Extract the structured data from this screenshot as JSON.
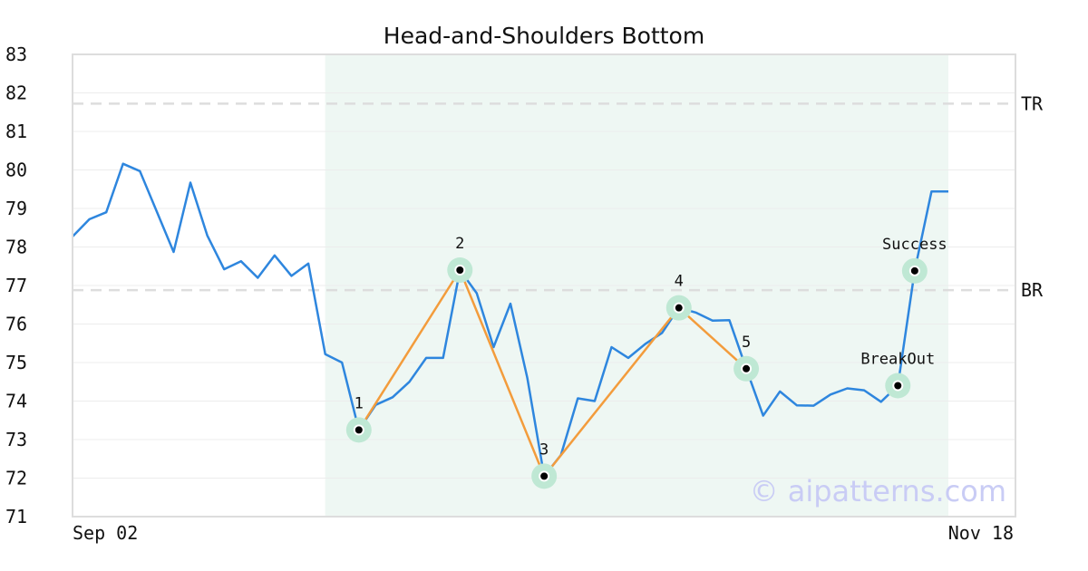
{
  "chart_data": {
    "type": "line",
    "title": "Head-and-Shoulders Bottom",
    "ylim": [
      71,
      83
    ],
    "yticks": [
      71,
      72,
      73,
      74,
      75,
      76,
      77,
      78,
      79,
      80,
      81,
      82,
      83
    ],
    "x_range": [
      0,
      55
    ],
    "x_tick_labels": [
      {
        "x": 0,
        "label": "Sep 02"
      },
      {
        "x": 55,
        "label": "Nov 18"
      }
    ],
    "grid": true,
    "colors": {
      "price": "#2e86de",
      "pattern": "#f39c3c",
      "shade": "#eef7f3",
      "marker_halo": "#bfe8d4",
      "level": "#dddddd"
    },
    "pattern_region": [
      15,
      52
    ],
    "price": {
      "x": [
        0,
        1,
        2,
        3,
        4,
        5,
        6,
        7,
        8,
        9,
        10,
        11,
        12,
        13,
        14,
        15,
        16,
        17,
        18,
        19,
        20,
        21,
        22,
        23,
        24,
        25,
        26,
        27,
        28,
        29,
        30,
        31,
        32,
        33,
        34,
        35,
        36,
        37,
        38,
        39,
        40,
        41,
        42,
        43,
        44,
        45,
        46,
        47,
        48,
        49,
        50,
        51,
        52
      ],
      "y": [
        78.27,
        78.72,
        78.9,
        80.16,
        79.97,
        78.92,
        77.87,
        79.67,
        78.3,
        77.42,
        77.63,
        77.2,
        77.78,
        77.25,
        77.57,
        75.22,
        75.0,
        73.25,
        73.9,
        74.1,
        74.5,
        75.12,
        75.12,
        77.4,
        76.8,
        75.4,
        76.53,
        74.6,
        72.05,
        72.6,
        74.07,
        74.0,
        75.4,
        75.12,
        75.48,
        75.77,
        76.42,
        76.3,
        76.09,
        76.1,
        74.84,
        73.62,
        74.25,
        73.89,
        73.88,
        74.17,
        74.33,
        74.28,
        73.98,
        74.4,
        77.38,
        79.44,
        79.44
      ]
    },
    "pattern_line": {
      "x": [
        17,
        23,
        28,
        36,
        40
      ],
      "y": [
        73.25,
        77.4,
        72.05,
        76.42,
        74.84
      ]
    },
    "points": [
      {
        "label": "1",
        "x": 17,
        "y": 73.25
      },
      {
        "label": "2",
        "x": 23,
        "y": 77.4
      },
      {
        "label": "3",
        "x": 28,
        "y": 72.05
      },
      {
        "label": "4",
        "x": 36,
        "y": 76.42
      },
      {
        "label": "5",
        "x": 40,
        "y": 74.84
      },
      {
        "label": "BreakOut",
        "x": 49,
        "y": 74.4
      },
      {
        "label": "Success",
        "x": 50,
        "y": 77.38
      }
    ],
    "levels": [
      {
        "label": "TR",
        "y": 81.72
      },
      {
        "label": "BR",
        "y": 76.88
      }
    ],
    "watermark": "© aipatterns.com"
  }
}
